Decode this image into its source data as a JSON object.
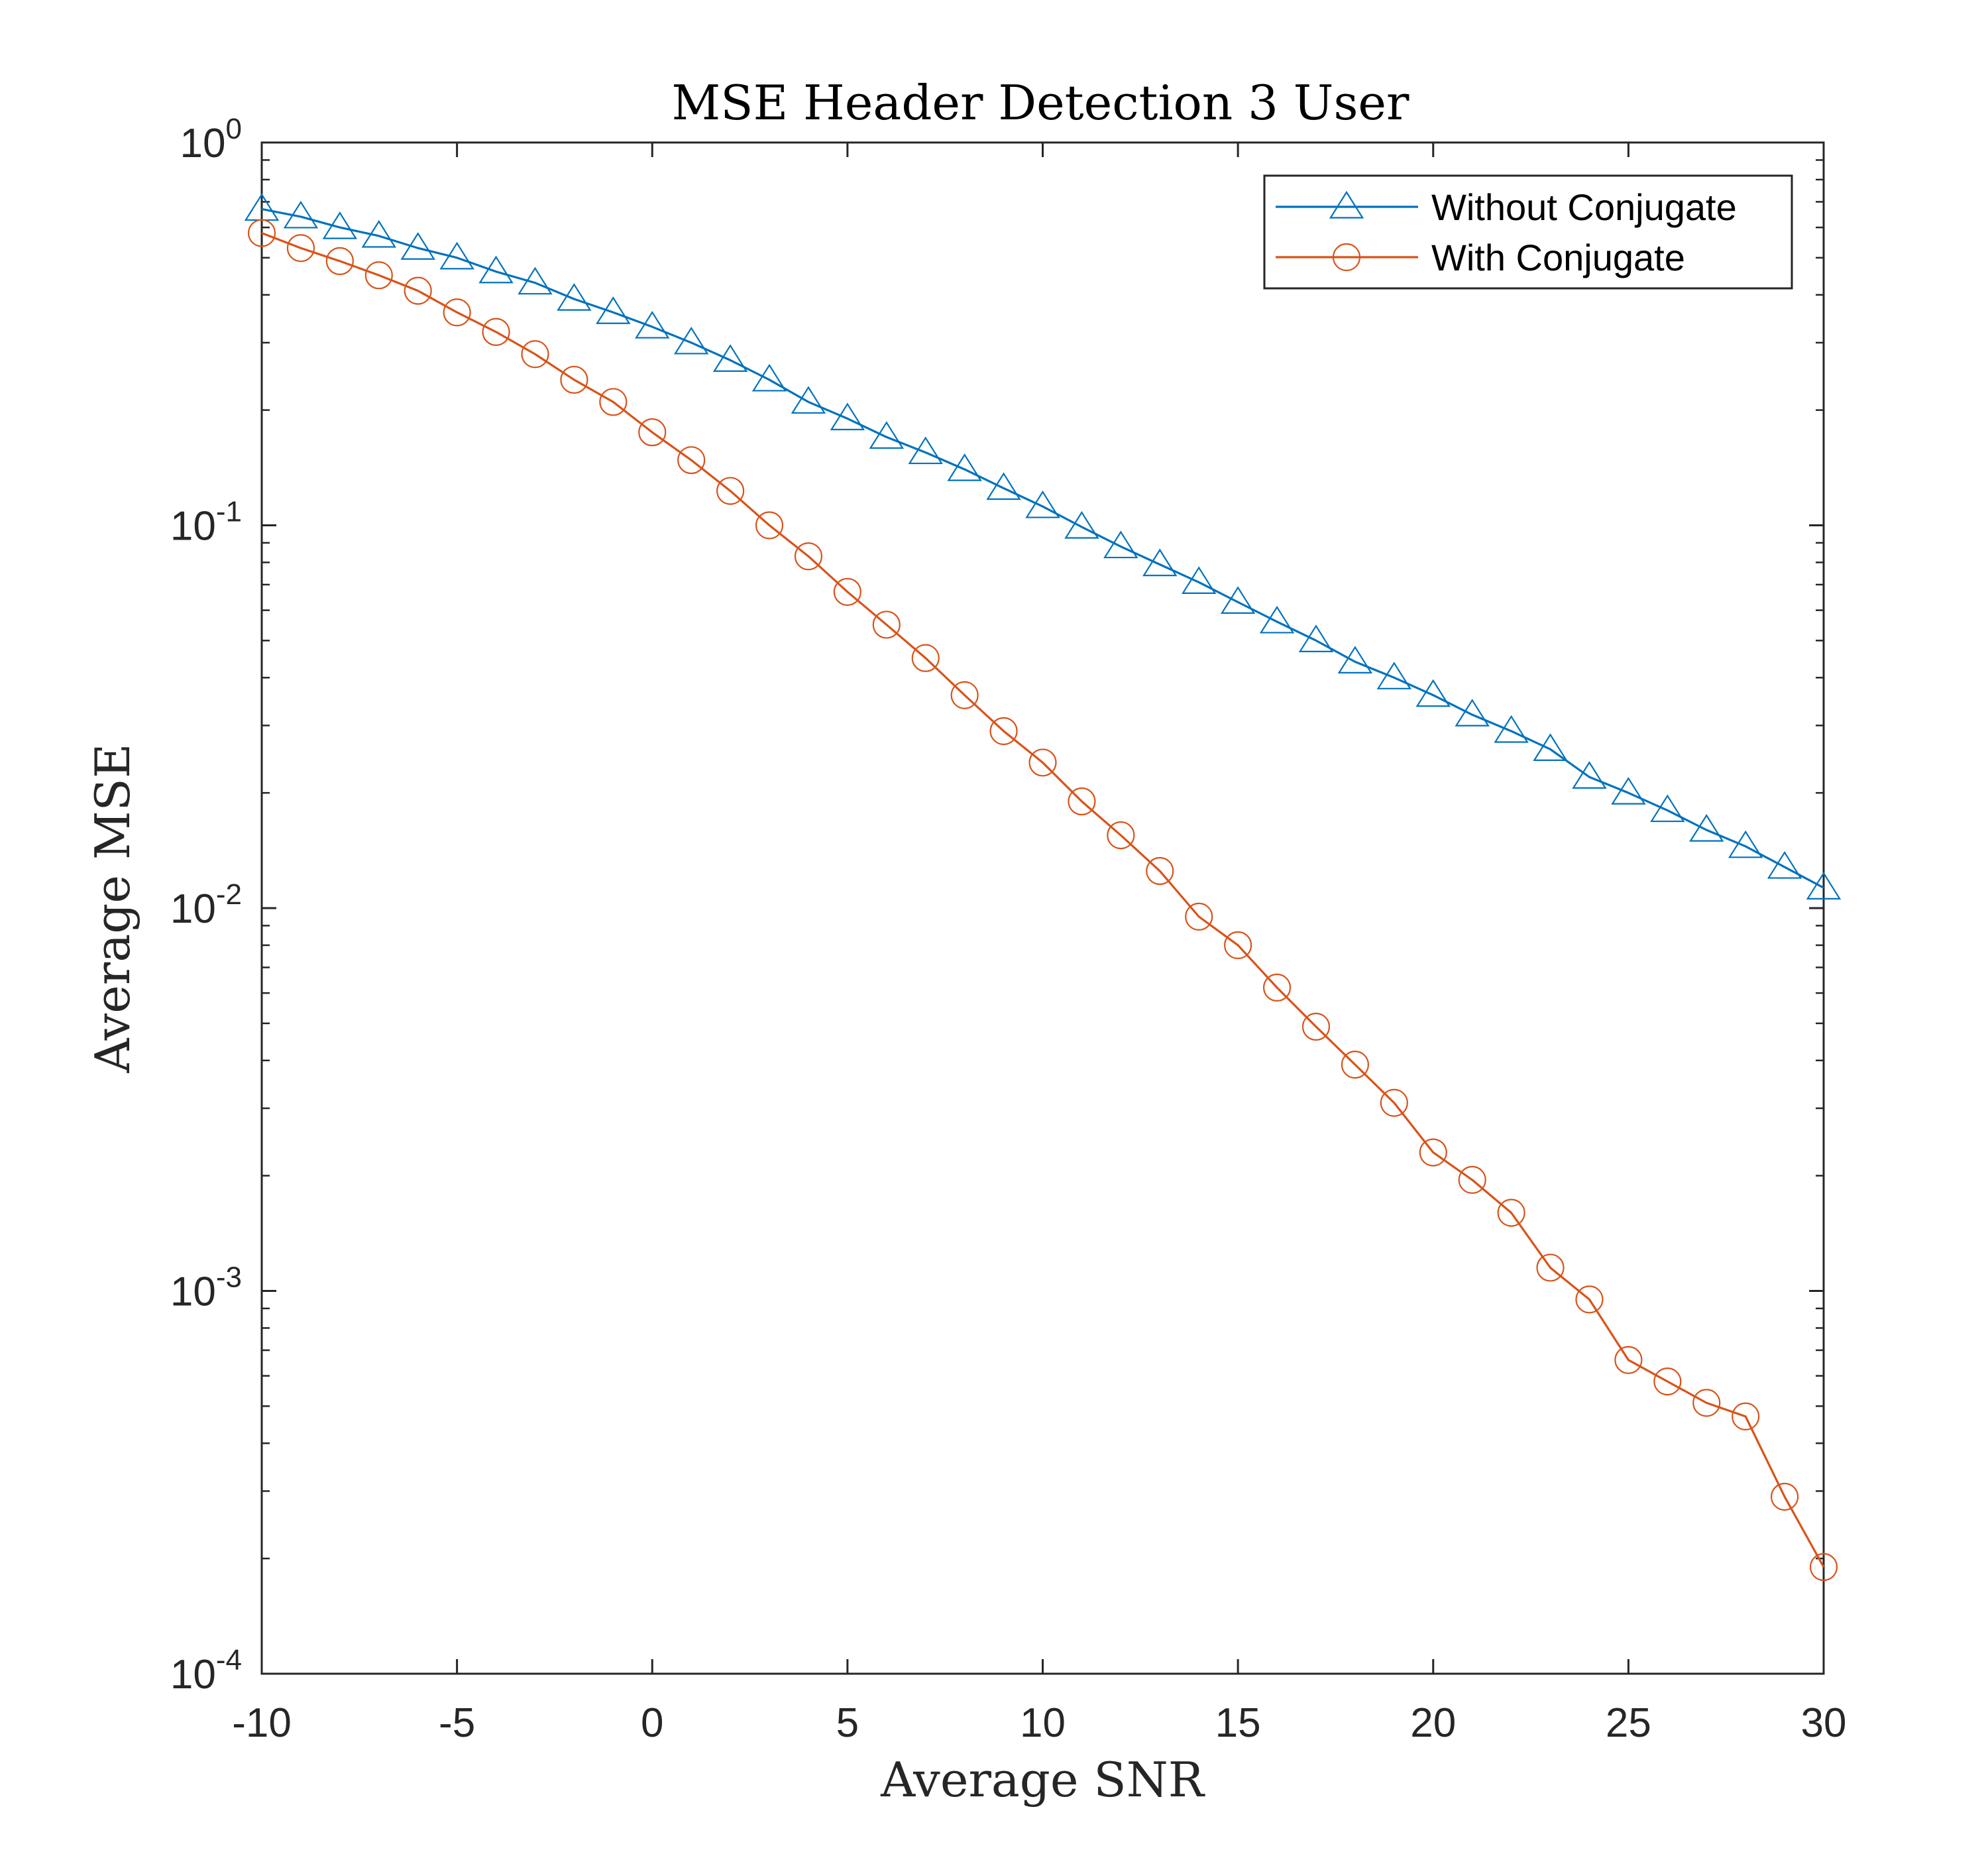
{
  "chart_data": {
    "type": "line",
    "title": "MSE Header Detection 3 User",
    "xlabel": "Average SNR",
    "ylabel": "Average MSE",
    "xlim": [
      -10,
      30
    ],
    "ylim": [
      0.0001,
      1
    ],
    "yscale": "log",
    "grid": false,
    "legend_position": "top-right",
    "x_ticks": [
      -10,
      -5,
      0,
      5,
      10,
      15,
      20,
      25,
      30
    ],
    "y_ticks": [
      {
        "value": 0.0001,
        "base": "10",
        "exp": "-4"
      },
      {
        "value": 0.001,
        "base": "10",
        "exp": "-3"
      },
      {
        "value": 0.01,
        "base": "10",
        "exp": "-2"
      },
      {
        "value": 0.1,
        "base": "10",
        "exp": "-1"
      },
      {
        "value": 1,
        "base": "10",
        "exp": "0"
      }
    ],
    "x": [
      -10,
      -9,
      -8,
      -7,
      -6,
      -5,
      -4,
      -3,
      -2,
      -1,
      0,
      1,
      2,
      3,
      4,
      5,
      6,
      7,
      8,
      9,
      10,
      11,
      12,
      13,
      14,
      15,
      16,
      17,
      18,
      19,
      20,
      21,
      22,
      23,
      24,
      25,
      26,
      27,
      28,
      29,
      30
    ],
    "series": [
      {
        "name": "Without Conjugate",
        "color": "#0072BD",
        "marker": "triangle",
        "values": [
          0.67,
          0.64,
          0.6,
          0.57,
          0.53,
          0.5,
          0.46,
          0.43,
          0.39,
          0.36,
          0.33,
          0.3,
          0.27,
          0.24,
          0.21,
          0.19,
          0.17,
          0.155,
          0.14,
          0.125,
          0.112,
          0.099,
          0.088,
          0.079,
          0.071,
          0.063,
          0.056,
          0.05,
          0.044,
          0.04,
          0.036,
          0.032,
          0.029,
          0.026,
          0.022,
          0.02,
          0.018,
          0.016,
          0.0145,
          0.0128,
          0.0113
        ]
      },
      {
        "name": "With Conjugate",
        "color": "#D95319",
        "marker": "circle",
        "values": [
          0.58,
          0.53,
          0.49,
          0.45,
          0.41,
          0.36,
          0.32,
          0.28,
          0.24,
          0.21,
          0.175,
          0.148,
          0.123,
          0.1,
          0.083,
          0.067,
          0.055,
          0.045,
          0.036,
          0.029,
          0.024,
          0.019,
          0.0155,
          0.0125,
          0.0095,
          0.008,
          0.0062,
          0.0049,
          0.0039,
          0.0031,
          0.0023,
          0.00195,
          0.0016,
          0.00115,
          0.00095,
          0.00066,
          0.00058,
          0.00051,
          0.00047,
          0.00029,
          0.00019
        ]
      }
    ]
  }
}
